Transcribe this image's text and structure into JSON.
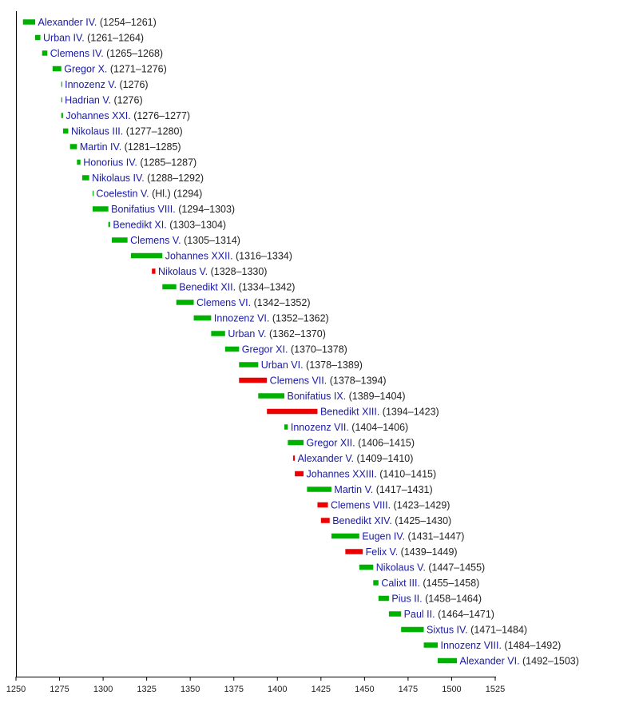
{
  "chart_data": {
    "type": "bar",
    "orientation": "horizontal-timeline",
    "xlim": [
      1250,
      1525
    ],
    "x_ticks": [
      "1250",
      "1275",
      "1300",
      "1325",
      "1350",
      "1375",
      "1400",
      "1425",
      "1450",
      "1475",
      "1500",
      "1525"
    ],
    "grid": false,
    "colors": {
      "legitimate": "#00b200",
      "antipope": "#ee0000",
      "name_text": "#1a1aa6",
      "year_text": "#222222"
    },
    "entries": [
      {
        "name": "Alexander IV.",
        "years": "(1254–1261)",
        "start": 1254,
        "end": 1261,
        "antipope": false
      },
      {
        "name": "Urban IV.",
        "years": "(1261–1264)",
        "start": 1261,
        "end": 1264,
        "antipope": false
      },
      {
        "name": "Clemens IV.",
        "years": "(1265–1268)",
        "start": 1265,
        "end": 1268,
        "antipope": false
      },
      {
        "name": "Gregor X.",
        "years": "(1271–1276)",
        "start": 1271,
        "end": 1276,
        "antipope": false
      },
      {
        "name": "Innozenz V.",
        "years": "(1276)",
        "start": 1276,
        "end": 1276.4,
        "antipope": false
      },
      {
        "name": "Hadrian V.",
        "years": "(1276)",
        "start": 1276,
        "end": 1276.4,
        "antipope": false
      },
      {
        "name": "Johannes XXI.",
        "years": "(1276–1277)",
        "start": 1276,
        "end": 1277,
        "antipope": false
      },
      {
        "name": "Nikolaus III.",
        "years": "(1277–1280)",
        "start": 1277,
        "end": 1280,
        "antipope": false
      },
      {
        "name": "Martin IV.",
        "years": "(1281–1285)",
        "start": 1281,
        "end": 1285,
        "antipope": false
      },
      {
        "name": "Honorius IV.",
        "years": "(1285–1287)",
        "start": 1285,
        "end": 1287,
        "antipope": false
      },
      {
        "name": "Nikolaus IV.",
        "years": "(1288–1292)",
        "start": 1288,
        "end": 1292,
        "antipope": false
      },
      {
        "name": "Coelestin V.",
        "years": "(Hl.) (1294)",
        "start": 1294,
        "end": 1294.4,
        "antipope": false
      },
      {
        "name": "Bonifatius VIII.",
        "years": "(1294–1303)",
        "start": 1294,
        "end": 1303,
        "antipope": false
      },
      {
        "name": "Benedikt XI.",
        "years": "(1303–1304)",
        "start": 1303,
        "end": 1304,
        "antipope": false
      },
      {
        "name": "Clemens V.",
        "years": "(1305–1314)",
        "start": 1305,
        "end": 1314,
        "antipope": false
      },
      {
        "name": "Johannes XXII.",
        "years": "(1316–1334)",
        "start": 1316,
        "end": 1334,
        "antipope": false
      },
      {
        "name": "Nikolaus V.",
        "years": "(1328–1330)",
        "start": 1328,
        "end": 1330,
        "antipope": true
      },
      {
        "name": "Benedikt XII.",
        "years": "(1334–1342)",
        "start": 1334,
        "end": 1342,
        "antipope": false
      },
      {
        "name": "Clemens VI.",
        "years": "(1342–1352)",
        "start": 1342,
        "end": 1352,
        "antipope": false
      },
      {
        "name": "Innozenz VI.",
        "years": "(1352–1362)",
        "start": 1352,
        "end": 1362,
        "antipope": false
      },
      {
        "name": "Urban V.",
        "years": "(1362–1370)",
        "start": 1362,
        "end": 1370,
        "antipope": false
      },
      {
        "name": "Gregor XI.",
        "years": "(1370–1378)",
        "start": 1370,
        "end": 1378,
        "antipope": false
      },
      {
        "name": "Urban VI.",
        "years": "(1378–1389)",
        "start": 1378,
        "end": 1389,
        "antipope": false
      },
      {
        "name": "Clemens VII.",
        "years": "(1378–1394)",
        "start": 1378,
        "end": 1394,
        "antipope": true
      },
      {
        "name": "Bonifatius IX.",
        "years": "(1389–1404)",
        "start": 1389,
        "end": 1404,
        "antipope": false
      },
      {
        "name": "Benedikt XIII.",
        "years": "(1394–1423)",
        "start": 1394,
        "end": 1423,
        "antipope": true
      },
      {
        "name": "Innozenz VII.",
        "years": "(1404–1406)",
        "start": 1404,
        "end": 1406,
        "antipope": false
      },
      {
        "name": "Gregor XII.",
        "years": "(1406–1415)",
        "start": 1406,
        "end": 1415,
        "antipope": false
      },
      {
        "name": "Alexander V.",
        "years": "(1409–1410)",
        "start": 1409,
        "end": 1410,
        "antipope": true
      },
      {
        "name": "Johannes XXIII.",
        "years": "(1410–1415)",
        "start": 1410,
        "end": 1415,
        "antipope": true
      },
      {
        "name": "Martin V.",
        "years": "(1417–1431)",
        "start": 1417,
        "end": 1431,
        "antipope": false
      },
      {
        "name": "Clemens VIII.",
        "years": "(1423–1429)",
        "start": 1423,
        "end": 1429,
        "antipope": true
      },
      {
        "name": "Benedikt XIV.",
        "years": "(1425–1430)",
        "start": 1425,
        "end": 1430,
        "antipope": true
      },
      {
        "name": "Eugen IV.",
        "years": "(1431–1447)",
        "start": 1431,
        "end": 1447,
        "antipope": false
      },
      {
        "name": "Felix V.",
        "years": "(1439–1449)",
        "start": 1439,
        "end": 1449,
        "antipope": true
      },
      {
        "name": "Nikolaus V.",
        "years": "(1447–1455)",
        "start": 1447,
        "end": 1455,
        "antipope": false
      },
      {
        "name": "Calixt III.",
        "years": "(1455–1458)",
        "start": 1455,
        "end": 1458,
        "antipope": false
      },
      {
        "name": "Pius II.",
        "years": "(1458–1464)",
        "start": 1458,
        "end": 1464,
        "antipope": false
      },
      {
        "name": "Paul II.",
        "years": "(1464–1471)",
        "start": 1464,
        "end": 1471,
        "antipope": false
      },
      {
        "name": "Sixtus IV.",
        "years": "(1471–1484)",
        "start": 1471,
        "end": 1484,
        "antipope": false
      },
      {
        "name": "Innozenz VIII.",
        "years": "(1484–1492)",
        "start": 1484,
        "end": 1492,
        "antipope": false
      },
      {
        "name": "Alexander VI.",
        "years": "(1492–1503)",
        "start": 1492,
        "end": 1503,
        "antipope": false
      }
    ]
  }
}
